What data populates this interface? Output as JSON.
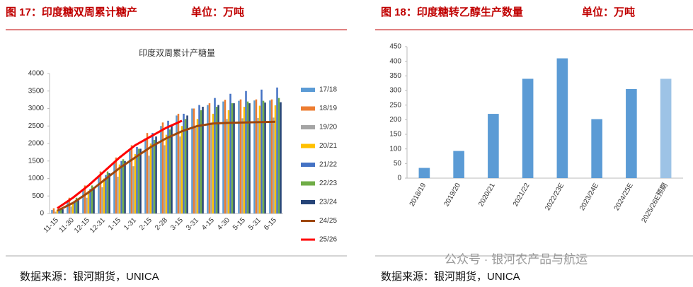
{
  "headers": [
    {
      "title": "图 17：印度糖双周累计糖产",
      "unit": "单位：万吨",
      "source": "数据来源：银河期货，UNICA"
    },
    {
      "title": "图 18：印度糖转乙醇生产数量",
      "unit": "单位：万吨",
      "source": "数据来源：银河期货，UNICA"
    }
  ],
  "watermark": "公众号 · 银河农产品与航运",
  "chart_data": [
    {
      "type": "bar",
      "title": "印度双周累计产糖量",
      "categories": [
        "11-15",
        "11-30",
        "12-15",
        "12-31",
        "1-15",
        "1-31",
        "2-15",
        "2-28",
        "3-15",
        "3-31",
        "4-15",
        "4-30",
        "5-15",
        "5-31",
        "6-15"
      ],
      "series": [
        {
          "name": "17/18",
          "color": "#5b9bd5",
          "values": [
            100,
            350,
            700,
            1050,
            1450,
            1800,
            2150,
            2500,
            2800,
            3000,
            3100,
            3200,
            3220,
            3230,
            3230
          ]
        },
        {
          "name": "18/19",
          "color": "#ed7d31",
          "values": [
            150,
            450,
            800,
            1200,
            1600,
            1950,
            2300,
            2600,
            2850,
            3000,
            3150,
            3250,
            3260,
            3260,
            3260
          ]
        },
        {
          "name": "19/20",
          "color": "#a5a5a5",
          "values": [
            50,
            200,
            450,
            750,
            1050,
            1350,
            1650,
            1950,
            2200,
            2450,
            2600,
            2700,
            2720,
            2730,
            2740
          ]
        },
        {
          "name": "20/21",
          "color": "#ffc000",
          "values": [
            100,
            300,
            650,
            1000,
            1400,
            1700,
            2000,
            2250,
            2500,
            2700,
            2850,
            2950,
            3050,
            3080,
            3090
          ]
        },
        {
          "name": "21/22",
          "color": "#4472c4",
          "values": [
            100,
            350,
            700,
            1100,
            1500,
            1900,
            2300,
            2650,
            2850,
            3100,
            3300,
            3420,
            3500,
            3540,
            3600
          ]
        },
        {
          "name": "22/23",
          "color": "#70ad47",
          "values": [
            150,
            450,
            800,
            1200,
            1550,
            1850,
            2100,
            2400,
            2700,
            2950,
            3050,
            3150,
            3200,
            3220,
            3300
          ]
        },
        {
          "name": "23/24",
          "color": "#264478",
          "values": [
            120,
            400,
            750,
            1150,
            1500,
            1850,
            2200,
            2500,
            2800,
            3050,
            3100,
            3150,
            3150,
            3170,
            3180
          ]
        },
        {
          "name": "24/25",
          "color": "#9e480e",
          "type": "line",
          "values": [
            80,
            300,
            600,
            950,
            1300,
            1600,
            1900,
            2150,
            2350,
            2500,
            2570,
            2590,
            2600,
            2610,
            2620
          ]
        },
        {
          "name": "25/26",
          "color": "#ff0000",
          "type": "line",
          "values": [
            150,
            450,
            800,
            1200,
            1600,
            1950,
            2200,
            2450,
            2650,
            null,
            null,
            null,
            null,
            null,
            null
          ]
        }
      ],
      "ylim": [
        0,
        4000
      ],
      "yticks": [
        0,
        500,
        1000,
        1500,
        2000,
        2500,
        3000,
        3500,
        4000
      ],
      "legend": "right"
    },
    {
      "type": "bar",
      "categories": [
        "2018/19",
        "2019/20",
        "2020/21",
        "2021/22",
        "2022/23E",
        "2023/24E",
        "2024/25E",
        "2025/26E预期"
      ],
      "values": [
        35,
        93,
        220,
        340,
        410,
        202,
        305,
        340
      ],
      "colors": [
        "#5b9bd5",
        "#5b9bd5",
        "#5b9bd5",
        "#5b9bd5",
        "#5b9bd5",
        "#5b9bd5",
        "#5b9bd5",
        "#9dc3e6"
      ],
      "ylim": [
        0,
        450
      ],
      "yticks": [
        0,
        50,
        100,
        150,
        200,
        250,
        300,
        350,
        400,
        450
      ]
    }
  ]
}
